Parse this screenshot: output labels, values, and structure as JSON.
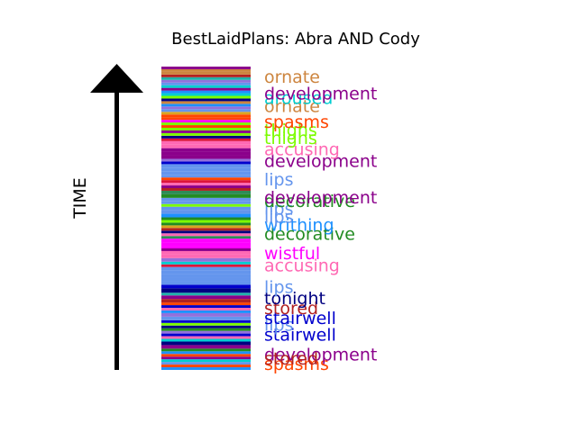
{
  "chart_data": {
    "type": "bar",
    "title": "BestLaidPlans: Abra AND Cody",
    "ylabel": "TIME",
    "colors": {
      "spasms": "#ff4500",
      "development": "#8b008b",
      "stairwell": "#0000cd",
      "stored": "#b22222",
      "tonight": "#000080",
      "lips": "#6495ed",
      "accusing": "#ff69b4",
      "wistful": "#ff00ff",
      "decorative": "#228b22",
      "writhing": "#1e90ff",
      "thighs": "#7cfc00",
      "ornate": "#cd853f",
      "aroused": "#00ced1",
      "other_1": "#ffa500",
      "other_2": "#2e8b57",
      "other_3": "#9370db",
      "other_4": "#20b2aa",
      "other_5": "#dc143c",
      "other_6": "#00ff7f",
      "other_7": "#4169e1",
      "other_8": "#daa520"
    },
    "stripes": [
      {
        "y0": 0,
        "y1": 1.5,
        "color": "#1e90ff"
      },
      {
        "y0": 1.5,
        "y1": 3,
        "color": "#ff4500"
      },
      {
        "y0": 3,
        "y1": 4.5,
        "color": "#6495ed"
      },
      {
        "y0": 4.5,
        "y1": 6,
        "color": "#00ced1"
      },
      {
        "y0": 6,
        "y1": 7.5,
        "color": "#8b008b"
      },
      {
        "y0": 7.5,
        "y1": 9,
        "color": "#ff4500"
      },
      {
        "y0": 9,
        "y1": 10.5,
        "color": "#1e90ff"
      },
      {
        "y0": 10.5,
        "y1": 12,
        "color": "#228b22"
      },
      {
        "y0": 12,
        "y1": 14,
        "color": "#8b008b"
      },
      {
        "y0": 14,
        "y1": 16,
        "color": "#000080"
      },
      {
        "y0": 16,
        "y1": 17.5,
        "color": "#00ced1"
      },
      {
        "y0": 17.5,
        "y1": 19,
        "color": "#ff69b4"
      },
      {
        "y0": 19,
        "y1": 20.5,
        "color": "#0000cd"
      },
      {
        "y0": 20.5,
        "y1": 22,
        "color": "#9370db"
      },
      {
        "y0": 22,
        "y1": 23.5,
        "color": "#228b22"
      },
      {
        "y0": 23.5,
        "y1": 25,
        "color": "#000080"
      },
      {
        "y0": 25,
        "y1": 26.5,
        "color": "#7cfc00"
      },
      {
        "y0": 26.5,
        "y1": 28,
        "color": "#0000cd"
      },
      {
        "y0": 28,
        "y1": 30,
        "color": "#6495ed"
      },
      {
        "y0": 30,
        "y1": 32,
        "color": "#9370db"
      },
      {
        "y0": 32,
        "y1": 33.5,
        "color": "#1e90ff"
      },
      {
        "y0": 33.5,
        "y1": 35,
        "color": "#ff69b4"
      },
      {
        "y0": 35,
        "y1": 36.5,
        "color": "#0000cd"
      },
      {
        "y0": 36.5,
        "y1": 38,
        "color": "#ff4500"
      },
      {
        "y0": 38,
        "y1": 40,
        "color": "#b22222"
      },
      {
        "y0": 40,
        "y1": 42,
        "color": "#8b008b"
      },
      {
        "y0": 42,
        "y1": 43.5,
        "color": "#20b2aa"
      },
      {
        "y0": 43.5,
        "y1": 46,
        "color": "#000080"
      },
      {
        "y0": 46,
        "y1": 48,
        "color": "#0000cd"
      },
      {
        "y0": 48,
        "y1": 50,
        "color": "#6495ed"
      },
      {
        "y0": 50,
        "y1": 52,
        "color": "#6495ed"
      },
      {
        "y0": 52,
        "y1": 54,
        "color": "#6495ed"
      },
      {
        "y0": 54,
        "y1": 56,
        "color": "#6495ed"
      },
      {
        "y0": 56,
        "y1": 58,
        "color": "#6495ed"
      },
      {
        "y0": 58,
        "y1": 59.5,
        "color": "#dc143c"
      },
      {
        "y0": 59.5,
        "y1": 61,
        "color": "#00ced1"
      },
      {
        "y0": 61,
        "y1": 63,
        "color": "#9370db"
      },
      {
        "y0": 63,
        "y1": 65,
        "color": "#ff69b4"
      },
      {
        "y0": 65,
        "y1": 67,
        "color": "#ff69b4"
      },
      {
        "y0": 67,
        "y1": 68.5,
        "color": "#8b008b"
      },
      {
        "y0": 68.5,
        "y1": 70,
        "color": "#ff00ff"
      },
      {
        "y0": 70,
        "y1": 72,
        "color": "#ff00ff"
      },
      {
        "y0": 72,
        "y1": 74,
        "color": "#ff00ff"
      },
      {
        "y0": 74,
        "y1": 75.5,
        "color": "#2e8b57"
      },
      {
        "y0": 75.5,
        "y1": 77,
        "color": "#ff69b4"
      },
      {
        "y0": 77,
        "y1": 78.5,
        "color": "#000080"
      },
      {
        "y0": 78.5,
        "y1": 80,
        "color": "#b22222"
      },
      {
        "y0": 80,
        "y1": 81.5,
        "color": "#daa520"
      },
      {
        "y0": 81.5,
        "y1": 83,
        "color": "#228b22"
      },
      {
        "y0": 83,
        "y1": 84.5,
        "color": "#7cfc00"
      },
      {
        "y0": 84.5,
        "y1": 86,
        "color": "#228b22"
      },
      {
        "y0": 86,
        "y1": 88,
        "color": "#1e90ff"
      },
      {
        "y0": 88,
        "y1": 90,
        "color": "#6495ed"
      },
      {
        "y0": 90,
        "y1": 92,
        "color": "#6495ed"
      },
      {
        "y0": 92,
        "y1": 93.5,
        "color": "#7cfc00"
      },
      {
        "y0": 93.5,
        "y1": 95,
        "color": "#6495ed"
      },
      {
        "y0": 95,
        "y1": 97,
        "color": "#6495ed"
      },
      {
        "y0": 97,
        "y1": 99,
        "color": "#228b22"
      },
      {
        "y0": 99,
        "y1": 101,
        "color": "#2e8b57"
      },
      {
        "y0": 101,
        "y1": 102.5,
        "color": "#b22222"
      },
      {
        "y0": 102.5,
        "y1": 104,
        "color": "#8b008b"
      },
      {
        "y0": 104,
        "y1": 105.5,
        "color": "#ff69b4"
      },
      {
        "y0": 105.5,
        "y1": 107,
        "color": "#dc143c"
      },
      {
        "y0": 107,
        "y1": 108.5,
        "color": "#ff4500"
      },
      {
        "y0": 108.5,
        "y1": 110,
        "color": "#6495ed"
      },
      {
        "y0": 110,
        "y1": 112,
        "color": "#6495ed"
      },
      {
        "y0": 112,
        "y1": 114,
        "color": "#6495ed"
      },
      {
        "y0": 114,
        "y1": 116,
        "color": "#6495ed"
      },
      {
        "y0": 116,
        "y1": 117.5,
        "color": "#0000cd"
      },
      {
        "y0": 117.5,
        "y1": 119,
        "color": "#9370db"
      },
      {
        "y0": 119,
        "y1": 121,
        "color": "#8b008b"
      },
      {
        "y0": 121,
        "y1": 123,
        "color": "#8b008b"
      },
      {
        "y0": 123,
        "y1": 125,
        "color": "#8b008b"
      },
      {
        "y0": 125,
        "y1": 127,
        "color": "#ff69b4"
      },
      {
        "y0": 127,
        "y1": 129,
        "color": "#ff69b4"
      },
      {
        "y0": 129,
        "y1": 130.5,
        "color": "#dc143c"
      },
      {
        "y0": 130.5,
        "y1": 132,
        "color": "#000080"
      },
      {
        "y0": 132,
        "y1": 133.5,
        "color": "#7cfc00"
      },
      {
        "y0": 133.5,
        "y1": 135,
        "color": "#8b008b"
      },
      {
        "y0": 135,
        "y1": 136.5,
        "color": "#7cfc00"
      },
      {
        "y0": 136.5,
        "y1": 138,
        "color": "#ff4500"
      },
      {
        "y0": 138,
        "y1": 139.5,
        "color": "#7cfc00"
      },
      {
        "y0": 139.5,
        "y1": 141,
        "color": "#ff00ff"
      },
      {
        "y0": 141,
        "y1": 142.5,
        "color": "#ff4500"
      },
      {
        "y0": 142.5,
        "y1": 144,
        "color": "#ff4500"
      },
      {
        "y0": 144,
        "y1": 145.5,
        "color": "#daa520"
      },
      {
        "y0": 145.5,
        "y1": 147,
        "color": "#6495ed"
      },
      {
        "y0": 147,
        "y1": 148.5,
        "color": "#9370db"
      },
      {
        "y0": 148.5,
        "y1": 150,
        "color": "#1e90ff"
      },
      {
        "y0": 150,
        "y1": 151.5,
        "color": "#cd853f"
      },
      {
        "y0": 151.5,
        "y1": 153,
        "color": "#000080"
      },
      {
        "y0": 153,
        "y1": 154.5,
        "color": "#7cfc00"
      },
      {
        "y0": 154.5,
        "y1": 156,
        "color": "#00ced1"
      },
      {
        "y0": 156,
        "y1": 157.5,
        "color": "#1e90ff"
      },
      {
        "y0": 157.5,
        "y1": 159,
        "color": "#8b008b"
      },
      {
        "y0": 159,
        "y1": 160.5,
        "color": "#00ced1"
      },
      {
        "y0": 160.5,
        "y1": 162,
        "color": "#6495ed"
      },
      {
        "y0": 162,
        "y1": 163.5,
        "color": "#9370db"
      },
      {
        "y0": 163.5,
        "y1": 165,
        "color": "#20b2aa"
      },
      {
        "y0": 165,
        "y1": 166.5,
        "color": "#b22222"
      },
      {
        "y0": 166.5,
        "y1": 168,
        "color": "#cd853f"
      },
      {
        "y0": 168,
        "y1": 169.5,
        "color": "#cd853f"
      },
      {
        "y0": 169.5,
        "y1": 171,
        "color": "#8b008b"
      }
    ],
    "labels": [
      {
        "text": "spasms",
        "y": 3.5,
        "color": "#ff4500"
      },
      {
        "text": "development",
        "y": 9,
        "color": "#8b008b"
      },
      {
        "text": "stored",
        "y": 6.5,
        "color": "#b22222"
      },
      {
        "text": "stairwell",
        "y": 20,
        "color": "#0000cd"
      },
      {
        "text": "lips",
        "y": 25.5,
        "color": "#6495ed"
      },
      {
        "text": "stairwell",
        "y": 29.5,
        "color": "#0000cd"
      },
      {
        "text": "stored",
        "y": 35,
        "color": "#b22222"
      },
      {
        "text": "tonight",
        "y": 40.5,
        "color": "#000080"
      },
      {
        "text": "lips",
        "y": 47,
        "color": "#6495ed"
      },
      {
        "text": "accusing",
        "y": 59,
        "color": "#ff69b4"
      },
      {
        "text": "wistful",
        "y": 66,
        "color": "#ff00ff"
      },
      {
        "text": "decorative",
        "y": 77,
        "color": "#228b22"
      },
      {
        "text": "writhing",
        "y": 82,
        "color": "#1e90ff"
      },
      {
        "text": "lips",
        "y": 86.5,
        "color": "#6495ed"
      },
      {
        "text": "lips",
        "y": 91,
        "color": "#6495ed"
      },
      {
        "text": "decorative",
        "y": 95.5,
        "color": "#228b22"
      },
      {
        "text": "development",
        "y": 97.5,
        "color": "#8b008b"
      },
      {
        "text": "lips",
        "y": 107.5,
        "color": "#6495ed"
      },
      {
        "text": "development",
        "y": 118,
        "color": "#8b008b"
      },
      {
        "text": "accusing",
        "y": 124.5,
        "color": "#ff69b4"
      },
      {
        "text": "thighs",
        "y": 131,
        "color": "#7cfc00"
      },
      {
        "text": "thighs",
        "y": 135.5,
        "color": "#7cfc00"
      },
      {
        "text": "spasms",
        "y": 140,
        "color": "#ff4500"
      },
      {
        "text": "ornate",
        "y": 149,
        "color": "#cd853f"
      },
      {
        "text": "aroused",
        "y": 153.5,
        "color": "#00ced1"
      },
      {
        "text": "development",
        "y": 156,
        "color": "#8b008b"
      },
      {
        "text": "ornate",
        "y": 165.5,
        "color": "#cd853f"
      }
    ],
    "ylim": [
      0,
      171
    ],
    "grid": false,
    "legend": "none"
  }
}
